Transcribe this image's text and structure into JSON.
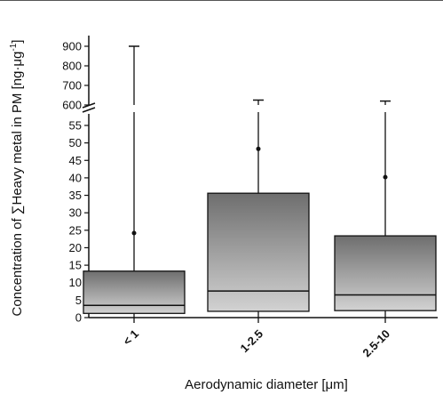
{
  "chart_data": {
    "type": "box",
    "title": "",
    "xlabel": "Aerodynamic diameter [μm]",
    "ylabel_main": "Concentration of ∑Heavy metal in PM [ng·μg",
    "ylabel_sup": "-1",
    "ylabel_close": "]",
    "y_axis_break": true,
    "y_lower_range": [
      0,
      58
    ],
    "y_upper_range": [
      600,
      900
    ],
    "y_ticks_lower": [
      0,
      5,
      10,
      15,
      20,
      25,
      30,
      35,
      40,
      45,
      50,
      55
    ],
    "y_ticks_upper": [
      600,
      700,
      800,
      900
    ],
    "categories": [
      "< 1",
      "1-2.5",
      "2.5-10"
    ],
    "boxes": [
      {
        "category": "< 1",
        "whisker_min": 0,
        "q1": 1.2,
        "median": 3.5,
        "q3": 13.3,
        "whisker_max": 900,
        "mean": 24.2
      },
      {
        "category": "1-2.5",
        "whisker_min": 0,
        "q1": 1.8,
        "median": 7.6,
        "q3": 35.6,
        "whisker_max": 625,
        "mean": 48.3
      },
      {
        "category": "2.5-10",
        "whisker_min": 0,
        "q1": 2.0,
        "median": 6.5,
        "q3": 23.4,
        "whisker_max": 620,
        "mean": 40.2
      }
    ],
    "grid": false,
    "box_fill_top": "#6e6e6e",
    "box_fill_bottom": "#d2d2d2"
  }
}
